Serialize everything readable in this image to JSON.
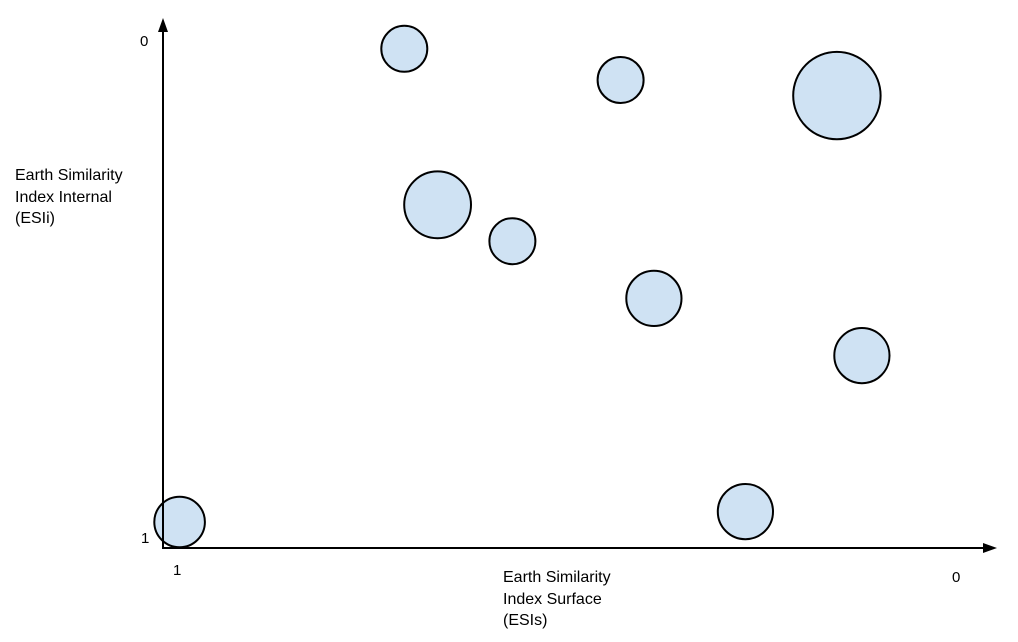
{
  "chart_data": {
    "type": "scatter",
    "title": "",
    "xlabel_lines": [
      "Earth Similarity",
      "Index Surface",
      "(ESIs)"
    ],
    "ylabel_lines": [
      "Earth Similarity",
      "Index Internal",
      "(ESIi)"
    ],
    "x_axis": {
      "reversed": true,
      "range": [
        1,
        0
      ],
      "ticks": [
        "1",
        "0"
      ]
    },
    "y_axis": {
      "reversed": true,
      "range": [
        1,
        0
      ],
      "ticks": [
        "1",
        "0"
      ]
    },
    "grid": false,
    "legend": "none",
    "bubble_fill": "#cfe2f3",
    "bubble_stroke": "#000000",
    "axis_color": "#000000",
    "points": [
      {
        "x": 0.98,
        "y": 0.95,
        "size": 1.1
      },
      {
        "x": 0.71,
        "y": 0.04,
        "size": 1.0
      },
      {
        "x": 0.67,
        "y": 0.34,
        "size": 1.45
      },
      {
        "x": 0.58,
        "y": 0.41,
        "size": 1.0
      },
      {
        "x": 0.45,
        "y": 0.1,
        "size": 1.0
      },
      {
        "x": 0.41,
        "y": 0.52,
        "size": 1.2
      },
      {
        "x": 0.3,
        "y": 0.93,
        "size": 1.2
      },
      {
        "x": 0.19,
        "y": 0.13,
        "size": 1.9
      },
      {
        "x": 0.16,
        "y": 0.63,
        "size": 1.2
      }
    ]
  }
}
